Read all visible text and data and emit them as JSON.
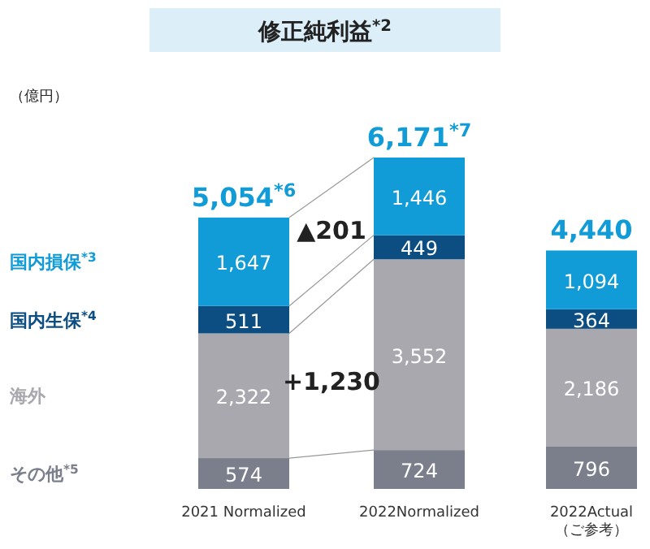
{
  "chart_data": {
    "type": "bar",
    "stacked": true,
    "title": "修正純利益$^{*2}$",
    "categories": [
      "2021 Normalized",
      "2022Normalized",
      "2022Actual\n（ご参考）"
    ],
    "series": [
      {
        "name": "その他$^{*5}$",
        "color": "#7b7f8c",
        "values": [
          574,
          724,
          796
        ],
        "value_labels": [
          "574",
          "724",
          "796"
        ]
      },
      {
        "name": "海外",
        "color": "#a8a8ae",
        "values": [
          2322,
          3552,
          2186
        ],
        "value_labels": [
          "2,322",
          "3,552",
          "2,186"
        ]
      },
      {
        "name": "国内生保$^{*4}$",
        "color": "#0d4e82",
        "values": [
          511,
          449,
          364
        ],
        "value_labels": [
          "511",
          "449",
          "364"
        ]
      },
      {
        "name": "国内損保$^{*3}$",
        "color": "#119bd7",
        "values": [
          1647,
          1446,
          1094
        ],
        "value_labels": [
          "1,647",
          "1,446",
          "1,094"
        ]
      }
    ],
    "totals": [
      "5,054$^{*6}$",
      "6,171$^{*7}$",
      "4,440"
    ],
    "annotations": [
      "（億円）",
      "▲201",
      "+1,230"
    ],
    "legend": "left"
  }
}
